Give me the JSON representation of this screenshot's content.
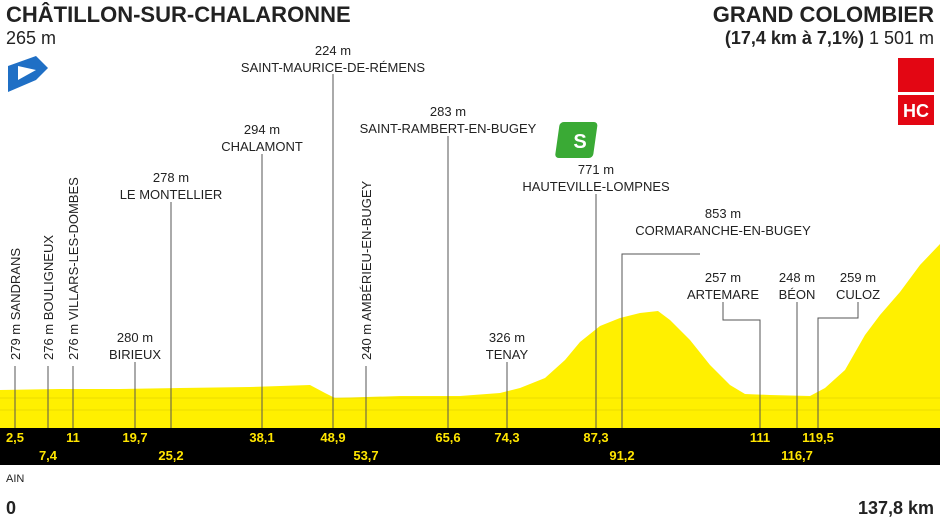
{
  "header": {
    "start": {
      "name": "CHÂTILLON-SUR-CHALARONNE",
      "altitude": "265 m"
    },
    "finish": {
      "name": "GRAND COLOMBIER",
      "climb": "(17,4 km à 7,1%)",
      "altitude": "1 501 m"
    }
  },
  "icons": {
    "sprint": "S",
    "climb_category": "HC"
  },
  "waypoints": [
    {
      "name": "SANDRANS",
      "altitude": "279 m",
      "km": "2,5"
    },
    {
      "name": "BOULIGNEUX",
      "altitude": "276 m",
      "km": "7,4"
    },
    {
      "name": "VILLARS-LES-DOMBES",
      "altitude": "276 m",
      "km": "11"
    },
    {
      "name": "BIRIEUX",
      "altitude": "280 m",
      "km": "19,7"
    },
    {
      "name": "LE MONTELLIER",
      "altitude": "278 m",
      "km": "25,2"
    },
    {
      "name": "CHALAMONT",
      "altitude": "294 m",
      "km": "38,1"
    },
    {
      "name": "SAINT-MAURICE-DE-RÉMENS",
      "altitude": "224 m",
      "km": "48,9"
    },
    {
      "name": "AMBÉRIEU-EN-BUGEY",
      "altitude": "240 m",
      "km": "53,7"
    },
    {
      "name": "SAINT-RAMBERT-EN-BUGEY",
      "altitude": "283 m",
      "km": "65,6"
    },
    {
      "name": "TENAY",
      "altitude": "326 m",
      "km": "74,3"
    },
    {
      "name": "HAUTEVILLE-LOMPNES",
      "altitude": "771 m",
      "km": "87,3"
    },
    {
      "name": "CORMARANCHE-EN-BUGEY",
      "altitude": "853 m",
      "km": "91,2"
    },
    {
      "name": "ARTEMARE",
      "altitude": "257 m",
      "km": "111"
    },
    {
      "name": "BÉON",
      "altitude": "248 m",
      "km": "116,7"
    },
    {
      "name": "CULOZ",
      "altitude": "259 m",
      "km": "119,5"
    }
  ],
  "footer": {
    "region": "AIN",
    "start_km": "0",
    "total": "137,8 km"
  }
}
